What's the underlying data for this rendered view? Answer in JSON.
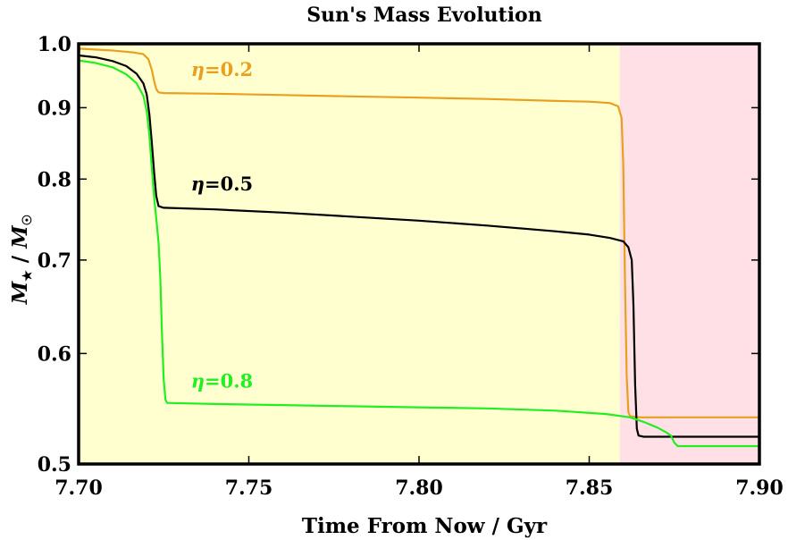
{
  "chart_data": {
    "type": "line",
    "title": "Sun's Mass Evolution",
    "xlabel": "Time From Now / Gyr",
    "ylabel": "M★ / M☉",
    "ylabel_parts": {
      "m1": "M",
      "sub1": "★",
      "slash": " / ",
      "m2": "M",
      "sub2": "☉"
    },
    "xlim": [
      7.7,
      7.9
    ],
    "ylim": [
      0.5,
      1.0
    ],
    "yscale": "log",
    "grid": false,
    "x_ticks": [
      {
        "value": 7.7,
        "label": "7.70"
      },
      {
        "value": 7.75,
        "label": "7.75"
      },
      {
        "value": 7.8,
        "label": "7.80"
      },
      {
        "value": 7.85,
        "label": "7.85"
      },
      {
        "value": 7.9,
        "label": "7.90"
      }
    ],
    "y_ticks": [
      {
        "value": 0.5,
        "label": "0.5"
      },
      {
        "value": 0.6,
        "label": "0.6"
      },
      {
        "value": 0.7,
        "label": "0.7"
      },
      {
        "value": 0.8,
        "label": "0.8"
      },
      {
        "value": 0.9,
        "label": "0.9"
      },
      {
        "value": 1.0,
        "label": "1.0"
      }
    ],
    "regions": [
      {
        "x_start": 7.7,
        "x_end": 7.859,
        "color": "#ffffd0"
      },
      {
        "x_start": 7.859,
        "x_end": 7.9,
        "color": "#ffe0e6"
      }
    ],
    "series": [
      {
        "eta_symbol": "η",
        "eta_value": "=0.2",
        "color": "#e8a020",
        "label_at": [
          7.733,
          0.948
        ],
        "points": [
          [
            7.7,
            0.992
          ],
          [
            7.71,
            0.989
          ],
          [
            7.716,
            0.986
          ],
          [
            7.719,
            0.983
          ],
          [
            7.7205,
            0.975
          ],
          [
            7.7215,
            0.958
          ],
          [
            7.7222,
            0.94
          ],
          [
            7.7228,
            0.928
          ],
          [
            7.7235,
            0.923
          ],
          [
            7.725,
            0.922
          ],
          [
            7.74,
            0.921
          ],
          [
            7.76,
            0.919
          ],
          [
            7.78,
            0.917
          ],
          [
            7.8,
            0.915
          ],
          [
            7.82,
            0.913
          ],
          [
            7.84,
            0.91
          ],
          [
            7.85,
            0.909
          ],
          [
            7.856,
            0.907
          ],
          [
            7.8585,
            0.902
          ],
          [
            7.8595,
            0.885
          ],
          [
            7.86,
            0.82
          ],
          [
            7.8605,
            0.68
          ],
          [
            7.861,
            0.58
          ],
          [
            7.8615,
            0.545
          ],
          [
            7.862,
            0.541
          ],
          [
            7.865,
            0.54
          ],
          [
            7.88,
            0.54
          ],
          [
            7.9,
            0.54
          ]
        ]
      },
      {
        "eta_symbol": "η",
        "eta_value": "=0.5",
        "color": "#000000",
        "label_at": [
          7.733,
          0.785
        ],
        "points": [
          [
            7.7,
            0.981
          ],
          [
            7.705,
            0.978
          ],
          [
            7.71,
            0.972
          ],
          [
            7.714,
            0.964
          ],
          [
            7.717,
            0.952
          ],
          [
            7.719,
            0.937
          ],
          [
            7.72,
            0.92
          ],
          [
            7.7208,
            0.89
          ],
          [
            7.7215,
            0.85
          ],
          [
            7.7222,
            0.808
          ],
          [
            7.7228,
            0.778
          ],
          [
            7.7235,
            0.765
          ],
          [
            7.725,
            0.763
          ],
          [
            7.74,
            0.761
          ],
          [
            7.76,
            0.757
          ],
          [
            7.78,
            0.752
          ],
          [
            7.8,
            0.747
          ],
          [
            7.82,
            0.741
          ],
          [
            7.84,
            0.734
          ],
          [
            7.85,
            0.73
          ],
          [
            7.856,
            0.726
          ],
          [
            7.86,
            0.722
          ],
          [
            7.8615,
            0.715
          ],
          [
            7.8625,
            0.7
          ],
          [
            7.863,
            0.65
          ],
          [
            7.8635,
            0.57
          ],
          [
            7.864,
            0.53
          ],
          [
            7.8645,
            0.524
          ],
          [
            7.866,
            0.523
          ],
          [
            7.88,
            0.523
          ],
          [
            7.9,
            0.523
          ]
        ]
      },
      {
        "eta_symbol": "η",
        "eta_value": "=0.8",
        "color": "#22ee22",
        "label_at": [
          7.733,
          0.567
        ],
        "points": [
          [
            7.7,
            0.973
          ],
          [
            7.705,
            0.969
          ],
          [
            7.71,
            0.962
          ],
          [
            7.714,
            0.951
          ],
          [
            7.717,
            0.937
          ],
          [
            7.719,
            0.918
          ],
          [
            7.72,
            0.895
          ],
          [
            7.7208,
            0.86
          ],
          [
            7.7215,
            0.815
          ],
          [
            7.7222,
            0.775
          ],
          [
            7.7228,
            0.75
          ],
          [
            7.7235,
            0.72
          ],
          [
            7.724,
            0.68
          ],
          [
            7.7245,
            0.62
          ],
          [
            7.725,
            0.575
          ],
          [
            7.7255,
            0.556
          ],
          [
            7.726,
            0.553
          ],
          [
            7.74,
            0.552
          ],
          [
            7.76,
            0.551
          ],
          [
            7.78,
            0.55
          ],
          [
            7.8,
            0.549
          ],
          [
            7.82,
            0.548
          ],
          [
            7.84,
            0.546
          ],
          [
            7.855,
            0.543
          ],
          [
            7.862,
            0.54
          ],
          [
            7.866,
            0.536
          ],
          [
            7.87,
            0.531
          ],
          [
            7.8725,
            0.527
          ],
          [
            7.874,
            0.524
          ],
          [
            7.875,
            0.518
          ],
          [
            7.876,
            0.515
          ],
          [
            7.88,
            0.515
          ],
          [
            7.9,
            0.515
          ]
        ]
      }
    ]
  }
}
